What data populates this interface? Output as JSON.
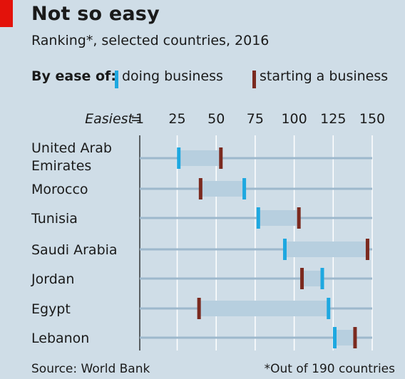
{
  "header": {
    "title": "Not so easy",
    "subtitle": "Ranking*, selected countries, 2016"
  },
  "legend": {
    "title": "By ease of:",
    "doing_business_label": "doing business",
    "starting_business_label": "starting a business"
  },
  "colors": {
    "background": "#cfdde7",
    "doing_business": "#1ea8e0",
    "starting_business": "#7b2a1f",
    "range_fill": "#b7cfdf",
    "baseline": "#9db8cc",
    "gridline": "#ffffff",
    "accent": "#e3120b"
  },
  "footer": {
    "source": "Source: World Bank",
    "note": "*Out of 190 countries"
  },
  "chart_data": {
    "type": "dot-range",
    "x_axis": {
      "prefix": "Easiest",
      "ticks": [
        1,
        25,
        50,
        75,
        100,
        125,
        150
      ],
      "range": [
        1,
        150
      ]
    },
    "categories": [
      "United Arab Emirates",
      "Morocco",
      "Tunisia",
      "Saudi Arabia",
      "Jordan",
      "Egypt",
      "Lebanon"
    ],
    "category_lines": [
      [
        "United Arab",
        "Emirates"
      ],
      [
        "Morocco"
      ],
      [
        "Tunisia"
      ],
      [
        "Saudi Arabia"
      ],
      [
        "Jordan"
      ],
      [
        "Egypt"
      ],
      [
        "Lebanon"
      ]
    ],
    "series": [
      {
        "name": "doing business",
        "values": [
          26,
          68,
          77,
          94,
          118,
          122,
          126
        ]
      },
      {
        "name": "starting a business",
        "values": [
          53,
          40,
          103,
          147,
          105,
          39,
          139
        ]
      }
    ],
    "grid": true
  }
}
